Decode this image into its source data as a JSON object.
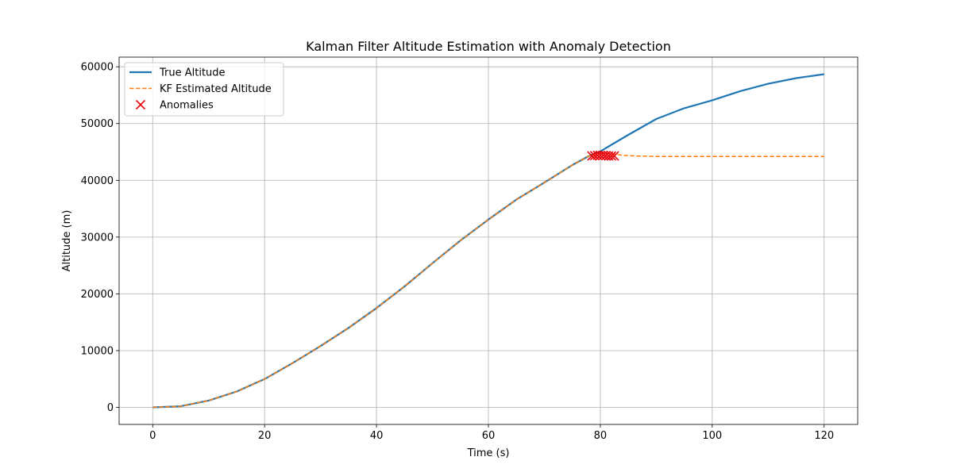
{
  "chart_data": {
    "type": "line",
    "title": "Kalman Filter Altitude Estimation with Anomaly Detection",
    "xlabel": "Time (s)",
    "ylabel": "Altitude (m)",
    "xlim": [
      -6,
      126
    ],
    "ylim": [
      -3000,
      61700
    ],
    "xticks": [
      0,
      20,
      40,
      60,
      80,
      100,
      120
    ],
    "yticks": [
      0,
      10000,
      20000,
      30000,
      40000,
      50000,
      60000
    ],
    "grid": true,
    "legend_position": "top-left",
    "series": [
      {
        "name": "True Altitude",
        "style": "solid",
        "color": "#1f77b4",
        "x": [
          0,
          5,
          10,
          15,
          20,
          25,
          30,
          35,
          40,
          45,
          50,
          55,
          60,
          65,
          70,
          75,
          78,
          80,
          85,
          90,
          95,
          100,
          105,
          110,
          115,
          120
        ],
        "y": [
          0,
          200,
          1200,
          2800,
          5000,
          7800,
          10800,
          14000,
          17500,
          21300,
          25400,
          29400,
          33100,
          36600,
          39600,
          42700,
          44300,
          45100,
          48000,
          50800,
          52700,
          54100,
          55700,
          57000,
          58000,
          58700
        ]
      },
      {
        "name": "KF Estimated Altitude",
        "style": "dashed",
        "color": "#ff7f0e",
        "x": [
          0,
          5,
          10,
          15,
          20,
          25,
          30,
          35,
          40,
          45,
          50,
          55,
          60,
          65,
          70,
          75,
          78,
          80,
          82,
          84,
          86,
          90,
          95,
          100,
          110,
          120
        ],
        "y": [
          0,
          200,
          1200,
          2800,
          5000,
          7800,
          10800,
          14000,
          17500,
          21300,
          25400,
          29400,
          33100,
          36600,
          39600,
          42700,
          44300,
          44800,
          44700,
          44400,
          44300,
          44200,
          44200,
          44200,
          44200,
          44200
        ]
      }
    ],
    "anomalies": {
      "name": "Anomalies",
      "color": "#e8000b",
      "x": [
        78.5,
        79,
        79.5,
        80,
        80.5,
        81,
        81.5,
        82,
        82.5
      ],
      "y": [
        44300,
        44350,
        44400,
        44400,
        44400,
        44350,
        44300,
        44300,
        44300
      ]
    }
  }
}
